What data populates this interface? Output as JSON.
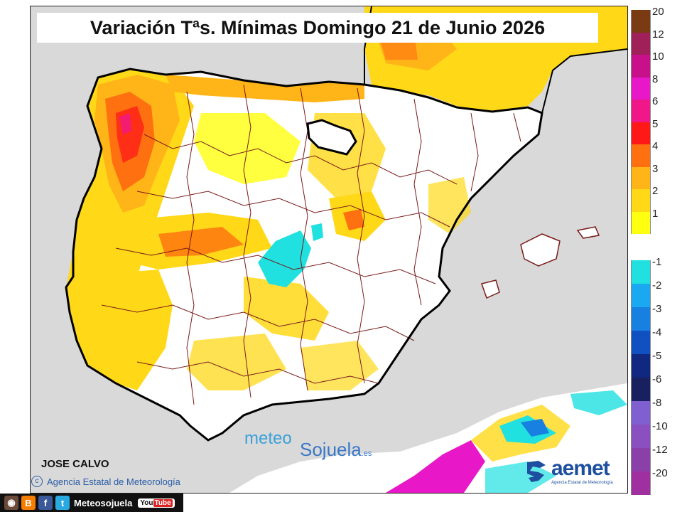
{
  "title": "Variación Tªs. Mínimas Domingo 21 de Junio 2026",
  "author": "JOSE CALVO",
  "copyright": "Agencia Estatal de Meteorología",
  "watermark": {
    "part1": "meteo",
    "part2": "Sojuela",
    "suffix": ".es"
  },
  "aemet": {
    "name": "aemet",
    "subtitle": "Agencia Estatal de Meteorología"
  },
  "social": {
    "handle": "Meteosojuela",
    "youtube_you": "You",
    "youtube_tube": "Tube"
  },
  "legend": {
    "positive": [
      {
        "label": "20",
        "color": "#7a3a12"
      },
      {
        "label": "12",
        "color": "#a0205a"
      },
      {
        "label": "10",
        "color": "#c8108a"
      },
      {
        "label": "8",
        "color": "#e818c8"
      },
      {
        "label": "6",
        "color": "#f01888"
      },
      {
        "label": "5",
        "color": "#ff1818"
      },
      {
        "label": "4",
        "color": "#ff7010"
      },
      {
        "label": "3",
        "color": "#ffb418"
      },
      {
        "label": "2",
        "color": "#ffd818"
      },
      {
        "label": "1",
        "color": "#ffff10"
      }
    ],
    "negative": [
      {
        "label": "-1",
        "color": "#20e0e0"
      },
      {
        "label": "-2",
        "color": "#1aa8f0"
      },
      {
        "label": "-3",
        "color": "#1880e0"
      },
      {
        "label": "-4",
        "color": "#1050c0"
      },
      {
        "label": "-5",
        "color": "#102880"
      },
      {
        "label": "-6",
        "color": "#182060"
      },
      {
        "label": "-8",
        "color": "#8060d0"
      },
      {
        "label": "-10",
        "color": "#8a50c0"
      },
      {
        "label": "-12",
        "color": "#8a40a8"
      },
      {
        "label": "-20",
        "color": "#a030a0"
      }
    ]
  },
  "colors": {
    "sea": "#d9d9d9",
    "neutral": "#ffffff",
    "border": "#7a1a1a",
    "coast": "#000000"
  }
}
